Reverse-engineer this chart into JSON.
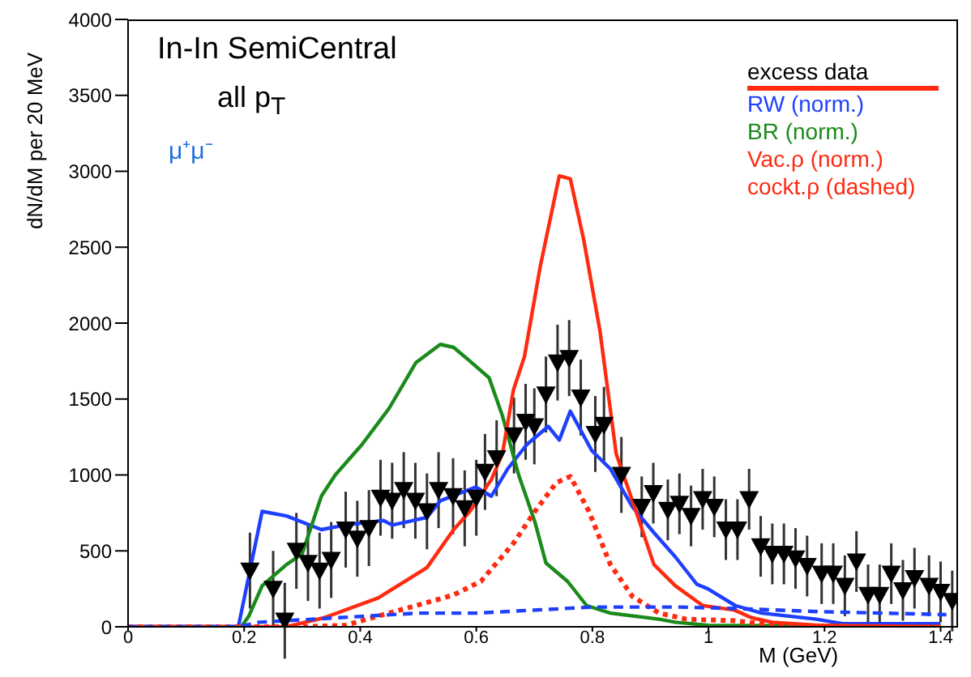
{
  "chart_data": {
    "type": "line",
    "title": "In-In SemiCentral",
    "subtitle": "all p$_{T}$",
    "xlabel": "M (GeV)",
    "ylabel": "dN/dM per 20 MeV",
    "annotations": [
      "μ⁺μ⁻"
    ],
    "xlim": [
      0,
      1.43
    ],
    "xticks": [
      0,
      0.2,
      0.4,
      0.6,
      0.8,
      1,
      1.2,
      1.4
    ],
    "ylim": [
      0,
      4000
    ],
    "yticks": [
      0,
      500,
      1000,
      1500,
      2000,
      2500,
      3000,
      3500,
      4000
    ],
    "legend": "top right",
    "series": [
      {
        "name": "excess data",
        "type": "scatter",
        "marker": "triangle",
        "color": "#000000",
        "x": [
          0.21,
          0.25,
          0.27,
          0.29,
          0.31,
          0.33,
          0.35,
          0.375,
          0.395,
          0.415,
          0.435,
          0.455,
          0.475,
          0.495,
          0.515,
          0.535,
          0.56,
          0.58,
          0.6,
          0.615,
          0.635,
          0.665,
          0.685,
          0.7,
          0.72,
          0.74,
          0.76,
          0.78,
          0.805,
          0.82,
          0.85,
          0.885,
          0.905,
          0.93,
          0.95,
          0.97,
          0.99,
          1.01,
          1.03,
          1.05,
          1.07,
          1.09,
          1.11,
          1.13,
          1.15,
          1.17,
          1.195,
          1.215,
          1.235,
          1.255,
          1.275,
          1.295,
          1.315,
          1.335,
          1.355,
          1.38,
          1.4,
          1.42
        ],
        "values": [
          370,
          250,
          40,
          500,
          420,
          370,
          440,
          640,
          580,
          650,
          850,
          830,
          900,
          830,
          760,
          900,
          860,
          780,
          850,
          1020,
          1110,
          1260,
          1350,
          1320,
          1530,
          1740,
          1770,
          1510,
          1270,
          1330,
          1000,
          790,
          880,
          770,
          810,
          730,
          840,
          790,
          640,
          640,
          840,
          530,
          480,
          480,
          450,
          400,
          350,
          350,
          270,
          430,
          210,
          210,
          350,
          240,
          320,
          270,
          230,
          170
        ],
        "errors": [
          250,
          250,
          250,
          250,
          250,
          250,
          250,
          250,
          250,
          250,
          250,
          250,
          250,
          250,
          250,
          250,
          250,
          250,
          250,
          250,
          250,
          250,
          250,
          250,
          250,
          250,
          250,
          250,
          250,
          250,
          250,
          200,
          200,
          200,
          200,
          200,
          200,
          200,
          200,
          200,
          200,
          200,
          200,
          200,
          200,
          200,
          200,
          200,
          200,
          200,
          200,
          200,
          200,
          200,
          200,
          200,
          200,
          200
        ]
      },
      {
        "name": "RW (norm.)",
        "color": "#1f3fff",
        "line_style": "solid",
        "x": [
          0,
          0.19,
          0.231,
          0.273,
          0.333,
          0.374,
          0.44,
          0.455,
          0.515,
          0.538,
          0.599,
          0.626,
          0.654,
          0.687,
          0.724,
          0.743,
          0.762,
          0.799,
          0.831,
          0.869,
          0.906,
          0.943,
          0.98,
          0.999,
          1.046,
          1.092,
          1.186,
          1.232,
          1.4
        ],
        "values": [
          0,
          0,
          760,
          730,
          640,
          670,
          700,
          670,
          720,
          830,
          920,
          860,
          1040,
          1200,
          1320,
          1230,
          1420,
          1160,
          1040,
          790,
          620,
          460,
          280,
          250,
          140,
          90,
          50,
          20,
          20
        ]
      },
      {
        "name": "BR (norm.)",
        "color": "#1a8a1a",
        "line_style": "solid",
        "x": [
          0,
          0.195,
          0.208,
          0.231,
          0.273,
          0.3,
          0.333,
          0.357,
          0.403,
          0.45,
          0.496,
          0.538,
          0.561,
          0.589,
          0.622,
          0.645,
          0.673,
          0.701,
          0.72,
          0.757,
          0.79,
          0.831,
          0.915,
          0.943,
          1.0,
          1.4
        ],
        "values": [
          0,
          0,
          70,
          270,
          410,
          480,
          860,
          1000,
          1200,
          1440,
          1740,
          1860,
          1840,
          1750,
          1640,
          1390,
          1000,
          690,
          420,
          300,
          140,
          90,
          50,
          30,
          10,
          0
        ]
      },
      {
        "name": "Vac.ρ (norm.)",
        "color": "#ff2a10",
        "line_style": "solid",
        "x": [
          0,
          0.25,
          0.273,
          0.338,
          0.431,
          0.515,
          0.561,
          0.589,
          0.626,
          0.645,
          0.664,
          0.683,
          0.71,
          0.743,
          0.762,
          0.785,
          0.813,
          0.841,
          0.869,
          0.906,
          0.943,
          0.99,
          1.045,
          1.074,
          1.11,
          1.19,
          1.4
        ],
        "values": [
          0,
          0,
          0,
          60,
          190,
          390,
          640,
          760,
          970,
          1140,
          1560,
          1780,
          2370,
          2970,
          2950,
          2550,
          1950,
          1140,
          830,
          410,
          270,
          140,
          110,
          60,
          30,
          10,
          0
        ]
      },
      {
        "name": "cockt.ρ (dashed)",
        "color": "#ff2a10",
        "line_style": "dotted",
        "x": [
          0,
          0.3,
          0.375,
          0.468,
          0.534,
          0.561,
          0.608,
          0.664,
          0.701,
          0.738,
          0.762,
          0.794,
          0.831,
          0.869,
          0.915,
          0.962,
          1.046,
          1.09,
          1.15,
          1.4
        ],
        "values": [
          0,
          0,
          10,
          110,
          180,
          210,
          300,
          550,
          760,
          950,
          990,
          760,
          410,
          200,
          90,
          50,
          40,
          20,
          0,
          0
        ]
      },
      {
        "color": "#1f3fff",
        "line_style": "dashed",
        "x": [
          0,
          0.19,
          0.226,
          0.5,
          0.6,
          0.8,
          0.95,
          1.05,
          1.19,
          1.41
        ],
        "values": [
          0,
          0,
          30,
          90,
          90,
          130,
          130,
          120,
          100,
          80
        ]
      }
    ]
  }
}
